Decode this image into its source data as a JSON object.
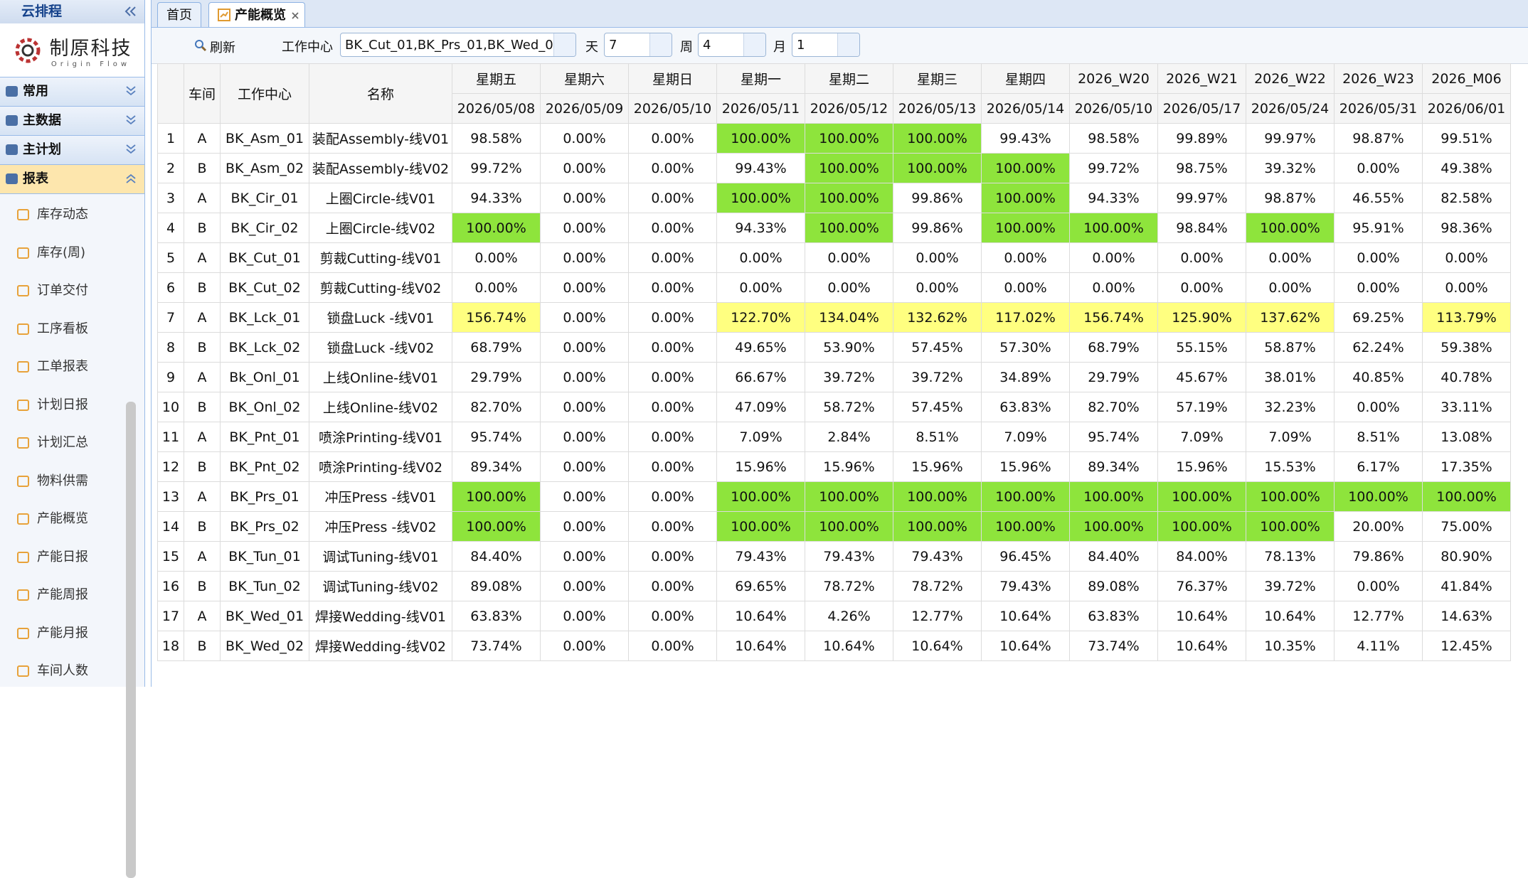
{
  "sidebar": {
    "title": "云排程",
    "logo": {
      "name": "制原科技",
      "tagline": "Origin Flow"
    },
    "sections": [
      "常用",
      "主数据",
      "主计划",
      "报表"
    ],
    "active_section": 3,
    "items": [
      "库存动态",
      "库存(周)",
      "订单交付",
      "工序看板",
      "工单报表",
      "计划日报",
      "计划汇总",
      "物料供需",
      "产能概览",
      "产能日报",
      "产能周报",
      "产能月报",
      "车间人数"
    ]
  },
  "tabs": [
    "首页",
    "产能概览"
  ],
  "active_tab": 1,
  "toolbar": {
    "refresh": "刷新",
    "work_center_label": "工作中心",
    "work_center_value": "BK_Cut_01,BK_Prs_01,BK_Wed_0",
    "day_label": "天",
    "day_value": "7",
    "week_label": "周",
    "week_value": "4",
    "month_label": "月",
    "month_value": "1"
  },
  "highlight_colors": {
    "full": "#8ee43c",
    "over": "#ffff80"
  },
  "table": {
    "fixed_headers": [
      "车间",
      "工作中心",
      "名称"
    ],
    "period_headers": [
      [
        "星期五",
        "2026/05/08"
      ],
      [
        "星期六",
        "2026/05/09"
      ],
      [
        "星期日",
        "2026/05/10"
      ],
      [
        "星期一",
        "2026/05/11"
      ],
      [
        "星期二",
        "2026/05/12"
      ],
      [
        "星期三",
        "2026/05/13"
      ],
      [
        "星期四",
        "2026/05/14"
      ],
      [
        "2026_W20",
        "2026/05/10"
      ],
      [
        "2026_W21",
        "2026/05/17"
      ],
      [
        "2026_W22",
        "2026/05/24"
      ],
      [
        "2026_W23",
        "2026/05/31"
      ],
      [
        "2026_M06",
        "2026/06/01"
      ]
    ],
    "rows": [
      [
        "1",
        "A",
        "BK_Asm_01",
        "装配Assembly-线V01",
        "98.58%",
        "0.00%",
        "0.00%",
        "100.00%",
        "100.00%",
        "100.00%",
        "99.43%",
        "98.58%",
        "99.89%",
        "99.97%",
        "98.87%",
        "99.51%"
      ],
      [
        "2",
        "B",
        "BK_Asm_02",
        "装配Assembly-线V02",
        "99.72%",
        "0.00%",
        "0.00%",
        "99.43%",
        "100.00%",
        "100.00%",
        "100.00%",
        "99.72%",
        "98.75%",
        "39.32%",
        "0.00%",
        "49.38%"
      ],
      [
        "3",
        "A",
        "BK_Cir_01",
        "上圈Circle-线V01",
        "94.33%",
        "0.00%",
        "0.00%",
        "100.00%",
        "100.00%",
        "99.86%",
        "100.00%",
        "94.33%",
        "99.97%",
        "98.87%",
        "46.55%",
        "82.58%"
      ],
      [
        "4",
        "B",
        "BK_Cir_02",
        "上圈Circle-线V02",
        "100.00%",
        "0.00%",
        "0.00%",
        "94.33%",
        "100.00%",
        "99.86%",
        "100.00%",
        "100.00%",
        "98.84%",
        "100.00%",
        "95.91%",
        "98.36%"
      ],
      [
        "5",
        "A",
        "BK_Cut_01",
        "剪裁Cutting-线V01",
        "0.00%",
        "0.00%",
        "0.00%",
        "0.00%",
        "0.00%",
        "0.00%",
        "0.00%",
        "0.00%",
        "0.00%",
        "0.00%",
        "0.00%",
        "0.00%"
      ],
      [
        "6",
        "B",
        "BK_Cut_02",
        "剪裁Cutting-线V02",
        "0.00%",
        "0.00%",
        "0.00%",
        "0.00%",
        "0.00%",
        "0.00%",
        "0.00%",
        "0.00%",
        "0.00%",
        "0.00%",
        "0.00%",
        "0.00%"
      ],
      [
        "7",
        "A",
        "BK_Lck_01",
        "锁盘Luck -线V01",
        "156.74%",
        "0.00%",
        "0.00%",
        "122.70%",
        "134.04%",
        "132.62%",
        "117.02%",
        "156.74%",
        "125.90%",
        "137.62%",
        "69.25%",
        "113.79%"
      ],
      [
        "8",
        "B",
        "BK_Lck_02",
        "锁盘Luck -线V02",
        "68.79%",
        "0.00%",
        "0.00%",
        "49.65%",
        "53.90%",
        "57.45%",
        "57.30%",
        "68.79%",
        "55.15%",
        "58.87%",
        "62.24%",
        "59.38%"
      ],
      [
        "9",
        "A",
        "Bk_Onl_01",
        "上线Online-线V01",
        "29.79%",
        "0.00%",
        "0.00%",
        "66.67%",
        "39.72%",
        "39.72%",
        "34.89%",
        "29.79%",
        "45.67%",
        "38.01%",
        "40.85%",
        "40.78%"
      ],
      [
        "10",
        "B",
        "BK_Onl_02",
        "上线Online-线V02",
        "82.70%",
        "0.00%",
        "0.00%",
        "47.09%",
        "58.72%",
        "57.45%",
        "63.83%",
        "82.70%",
        "57.19%",
        "32.23%",
        "0.00%",
        "33.11%"
      ],
      [
        "11",
        "A",
        "BK_Pnt_01",
        "喷涂Printing-线V01",
        "95.74%",
        "0.00%",
        "0.00%",
        "7.09%",
        "2.84%",
        "8.51%",
        "7.09%",
        "95.74%",
        "7.09%",
        "7.09%",
        "8.51%",
        "13.08%"
      ],
      [
        "12",
        "B",
        "BK_Pnt_02",
        "喷涂Printing-线V02",
        "89.34%",
        "0.00%",
        "0.00%",
        "15.96%",
        "15.96%",
        "15.96%",
        "15.96%",
        "89.34%",
        "15.96%",
        "15.53%",
        "6.17%",
        "17.35%"
      ],
      [
        "13",
        "A",
        "BK_Prs_01",
        "冲压Press -线V01",
        "100.00%",
        "0.00%",
        "0.00%",
        "100.00%",
        "100.00%",
        "100.00%",
        "100.00%",
        "100.00%",
        "100.00%",
        "100.00%",
        "100.00%",
        "100.00%"
      ],
      [
        "14",
        "B",
        "BK_Prs_02",
        "冲压Press -线V02",
        "100.00%",
        "0.00%",
        "0.00%",
        "100.00%",
        "100.00%",
        "100.00%",
        "100.00%",
        "100.00%",
        "100.00%",
        "100.00%",
        "20.00%",
        "75.00%"
      ],
      [
        "15",
        "A",
        "BK_Tun_01",
        "调试Tuning-线V01",
        "84.40%",
        "0.00%",
        "0.00%",
        "79.43%",
        "79.43%",
        "79.43%",
        "96.45%",
        "84.40%",
        "84.00%",
        "78.13%",
        "79.86%",
        "80.90%"
      ],
      [
        "16",
        "B",
        "BK_Tun_02",
        "调试Tuning-线V02",
        "89.08%",
        "0.00%",
        "0.00%",
        "69.65%",
        "78.72%",
        "78.72%",
        "79.43%",
        "89.08%",
        "76.37%",
        "39.72%",
        "0.00%",
        "41.84%"
      ],
      [
        "17",
        "A",
        "BK_Wed_01",
        "焊接Wedding-线V01",
        "63.83%",
        "0.00%",
        "0.00%",
        "10.64%",
        "4.26%",
        "12.77%",
        "10.64%",
        "63.83%",
        "10.64%",
        "10.64%",
        "12.77%",
        "14.63%"
      ],
      [
        "18",
        "B",
        "BK_Wed_02",
        "焊接Wedding-线V02",
        "73.74%",
        "0.00%",
        "0.00%",
        "10.64%",
        "10.64%",
        "10.64%",
        "10.64%",
        "73.74%",
        "10.64%",
        "10.35%",
        "4.11%",
        "12.45%"
      ]
    ]
  }
}
